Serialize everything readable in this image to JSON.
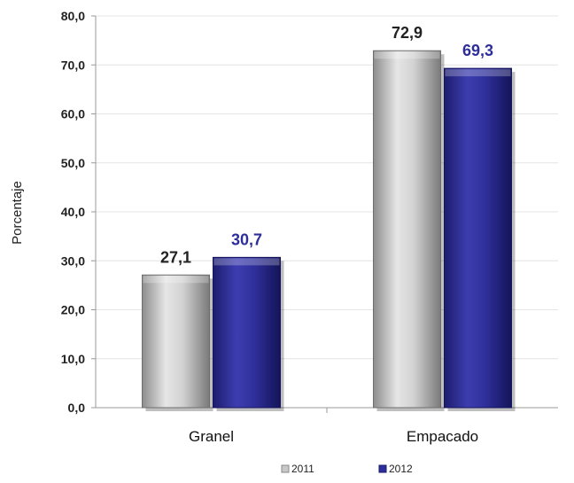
{
  "chart_data": {
    "type": "bar",
    "title": "",
    "xlabel": "",
    "ylabel": "Porcentaje",
    "ylim": [
      0,
      80
    ],
    "yticks": [
      "0,0",
      "10,0",
      "20,0",
      "30,0",
      "40,0",
      "50,0",
      "60,0",
      "70,0",
      "80,0"
    ],
    "categories": [
      "Granel",
      "Empacado"
    ],
    "series": [
      {
        "name": "2011",
        "values": [
          27.1,
          72.9
        ],
        "labels": [
          "27,1",
          "72,9"
        ],
        "color": "#c8c8c8",
        "label_color": "#222222"
      },
      {
        "name": "2012",
        "values": [
          30.7,
          69.3
        ],
        "labels": [
          "30,7",
          "69,3"
        ],
        "color": "#2e2e9a",
        "label_color": "#2e2e9a"
      }
    ],
    "grid": true,
    "legend_position": "bottom"
  }
}
